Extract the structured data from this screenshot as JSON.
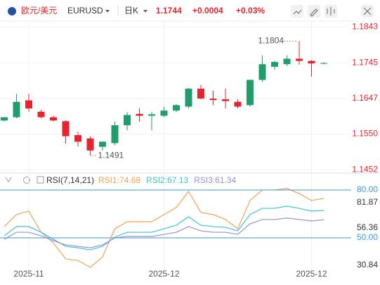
{
  "header": {
    "name": "欧元/美元",
    "symbol": "EURUSD",
    "period": "日K",
    "price": "1.1744",
    "change": "+0.0004",
    "change_pct": "+0.03%"
  },
  "chart_data": [
    {
      "type": "candlestick",
      "categories": [
        null,
        null,
        "2025-11",
        null,
        null,
        null,
        null,
        null,
        null,
        null,
        null,
        null,
        null,
        "2025-12",
        null,
        null,
        null,
        null,
        null,
        null,
        null,
        null,
        null,
        null,
        null,
        "2025-12",
        null
      ],
      "open": [
        1.1587,
        1.1596,
        1.1642,
        1.1611,
        1.1596,
        1.1585,
        1.1547,
        1.1538,
        1.1515,
        1.1525,
        1.1574,
        1.1605,
        1.16,
        1.16,
        1.1614,
        1.1625,
        1.1674,
        1.1647,
        1.1645,
        1.1638,
        1.1629,
        1.1698,
        1.1734,
        1.1741,
        1.1756,
        1.175,
        1.1743
      ],
      "high": [
        1.1596,
        1.166,
        1.166,
        1.1616,
        1.16,
        1.1588,
        1.1556,
        1.1544,
        1.153,
        1.1584,
        1.161,
        1.162,
        1.1611,
        1.1625,
        1.1632,
        1.1676,
        1.1684,
        1.1669,
        1.1674,
        1.1645,
        1.17,
        1.1765,
        1.175,
        1.1765,
        1.1804,
        1.1752,
        1.1747
      ],
      "low": [
        1.1584,
        1.1593,
        1.1611,
        1.1593,
        1.1584,
        1.1524,
        1.1516,
        1.1491,
        1.1505,
        1.152,
        1.156,
        1.1584,
        1.156,
        1.1596,
        1.161,
        1.162,
        1.1645,
        1.1629,
        1.162,
        1.162,
        1.1625,
        1.1692,
        1.1725,
        1.1736,
        1.174,
        1.1707,
        1.1741
      ],
      "close": [
        1.1596,
        1.1638,
        1.162,
        1.1596,
        1.1587,
        1.1544,
        1.1529,
        1.1505,
        1.1529,
        1.1574,
        1.1602,
        1.16,
        1.1604,
        1.1614,
        1.1629,
        1.1674,
        1.1647,
        1.1643,
        1.164,
        1.1625,
        1.1698,
        1.1741,
        1.1747,
        1.1756,
        1.175,
        1.1743,
        1.1744
      ],
      "up_color": "#1f9e6b",
      "down_color": "#e8232d",
      "annotations": [
        {
          "label": "1.1804",
          "value": 1.1804
        },
        {
          "label": "1.1491",
          "value": 1.1491
        }
      ],
      "ylim": [
        1.1445,
        1.1855
      ],
      "yticks": [
        1.1843,
        1.1745,
        1.1647,
        {
          "value": 1.155,
          "label": "1.1550"
        },
        1.1452
      ],
      "grid": true
    },
    {
      "type": "line",
      "title": "RSI(7,14,21)",
      "series": [
        {
          "name": "RSI1:74.68",
          "color": "#f2a05a",
          "values": [
            57.1,
            64.6,
            66.8,
            53.5,
            46.9,
            36.8,
            35.9,
            31.5,
            38.1,
            55.7,
            60.1,
            60.1,
            60.1,
            64.6,
            69.0,
            79.1,
            65.9,
            64.6,
            61.5,
            55.7,
            73.4,
            80.0,
            80.0,
            80.9,
            77.8,
            73.4,
            74.68
          ]
        },
        {
          "name": "RSI2:67.13",
          "color": "#3ec3d6",
          "values": [
            51.3,
            57.1,
            57.1,
            53.5,
            49.1,
            44.7,
            43.8,
            42.5,
            44.7,
            50.4,
            53.5,
            53.5,
            53.5,
            55.7,
            57.9,
            63.2,
            57.9,
            57.1,
            56.6,
            54.4,
            64.6,
            68.5,
            68.5,
            69.9,
            68.5,
            66.8,
            67.13
          ]
        },
        {
          "name": "RSI3:61.34",
          "color": "#9a8fd8",
          "values": [
            49.1,
            53.5,
            53.5,
            51.3,
            48.2,
            45.6,
            44.7,
            43.8,
            45.6,
            50.0,
            50.9,
            50.9,
            50.9,
            52.2,
            53.5,
            57.1,
            54.4,
            53.5,
            53.5,
            52.2,
            58.8,
            61.5,
            61.5,
            62.4,
            61.5,
            60.6,
            61.34
          ]
        }
      ],
      "ylim": [
        29.3,
        83.5
      ],
      "levels": [
        {
          "value": 80,
          "label": "80.00"
        },
        {
          "value": 50,
          "label": "50.00"
        }
      ],
      "yticks": [
        81.87,
        56.36,
        30.84
      ]
    }
  ]
}
